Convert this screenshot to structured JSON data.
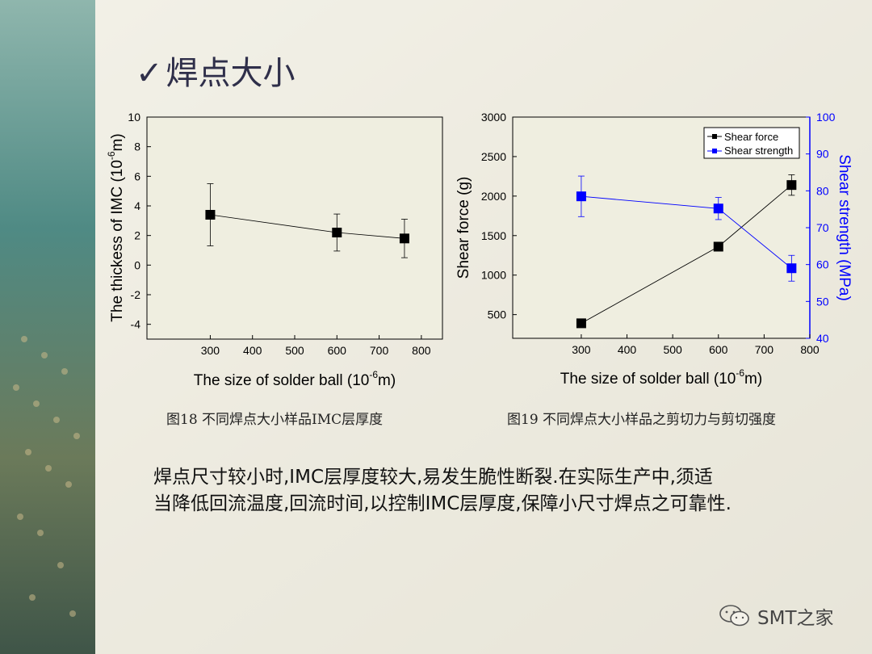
{
  "slide": {
    "title": "焊点大小",
    "caption_left": "图18 不同焊点大小样品IMC层厚度",
    "caption_right": "图19 不同焊点大小样品之剪切力与剪切强度",
    "body_line1": "焊点尺寸较小时,IMC层厚度较大,易发生脆性断裂.在实际生产中,须适",
    "body_line2": "当降低回流温度,回流时间,以控制IMC层厚度,保障小尺寸焊点之可靠性.",
    "watermark": "SMT之家"
  },
  "colors": {
    "blue": "#0000ff",
    "black": "#000000",
    "title": "#2f2f4a",
    "plot_bg": "#efeee0"
  },
  "chart_data": [
    {
      "type": "scatter",
      "xlabel_main": "The size of solder ball (10",
      "xlabel_sup": "-6",
      "xlabel_end": "m)",
      "ylabel_main": "The thickess of IMC (10",
      "ylabel_sup": "-6",
      "ylabel_end": "m)",
      "xlim": [
        150,
        850
      ],
      "ylim": [
        -5,
        10
      ],
      "xticks": [
        300,
        400,
        500,
        600,
        700,
        800
      ],
      "yticks": [
        -4,
        -2,
        0,
        2,
        4,
        6,
        8,
        10
      ],
      "series": [
        {
          "x": [
            300,
            600,
            760
          ],
          "y": [
            3.4,
            2.2,
            1.8
          ],
          "err": [
            2.1,
            1.25,
            1.3
          ],
          "marker": "square",
          "color": "#000000"
        }
      ]
    },
    {
      "type": "scatter",
      "xlabel_main": "The size of solder ball (10",
      "xlabel_sup": "-6",
      "xlabel_end": "m)",
      "ylabel_left": "Shear force (g)",
      "ylabel_right": "Shear strength (MPa)",
      "xlim": [
        150,
        800
      ],
      "ylim_left": [
        200,
        3000
      ],
      "ylim_right": [
        40,
        100
      ],
      "xticks": [
        300,
        400,
        500,
        600,
        700,
        800
      ],
      "yticks_left": [
        500,
        1000,
        1500,
        2000,
        2500,
        3000
      ],
      "yticks_right": [
        40,
        50,
        60,
        70,
        80,
        90,
        100
      ],
      "legend_position": "top-right",
      "series": [
        {
          "name": "Shear force",
          "axis": "left",
          "x": [
            300,
            600,
            760
          ],
          "y": [
            390,
            1360,
            2140
          ],
          "err": [
            0,
            40,
            130
          ],
          "color": "#000000"
        },
        {
          "name": "Shear strength",
          "axis": "right",
          "x": [
            300,
            600,
            760
          ],
          "y": [
            78.5,
            75.2,
            59
          ],
          "err": [
            5.5,
            3,
            3.5
          ],
          "color": "#0000ff"
        }
      ]
    }
  ]
}
